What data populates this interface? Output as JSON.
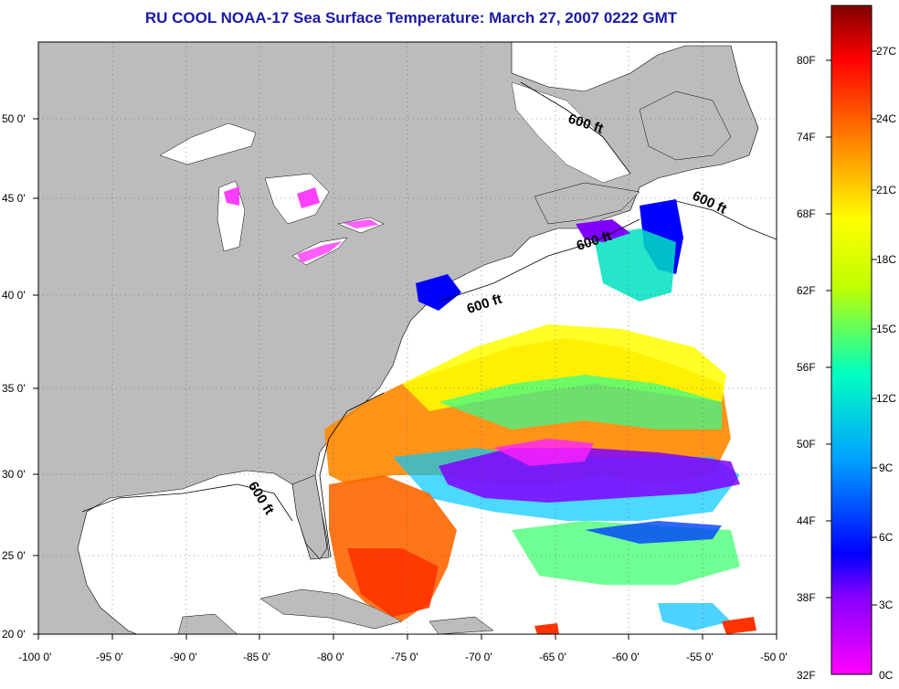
{
  "title": "RU COOL  NOAA-17  Sea Surface Temperature:  March 27, 2007 0222 GMT",
  "map": {
    "lon_ticks": [
      "-100 0'",
      "-95 0'",
      "-90 0'",
      "-85 0'",
      "-80 0'",
      "-75 0'",
      "-70 0'",
      "-65 0'",
      "-60 0'",
      "-55 0'",
      "-50 0'"
    ],
    "lat_ticks": [
      "50 0'",
      "45 0'",
      "40 0'",
      "35 0'",
      "30 0'",
      "25 0'",
      "20 0'"
    ],
    "isobath_labels": [
      "600 ft",
      "600 ft",
      "600 ft",
      "600 ft",
      "600 ft"
    ],
    "land_color": "#bcbcbc",
    "ocean_nodata_color": "#ffffff"
  },
  "colorbar": {
    "fahrenheit_labels": [
      "80F",
      "74F",
      "68F",
      "62F",
      "56F",
      "50F",
      "44F",
      "38F",
      "32F"
    ],
    "celsius_labels": [
      "27C",
      "24C",
      "21C",
      "18C",
      "15C",
      "12C",
      "9C",
      "6C",
      "3C",
      "0C"
    ]
  }
}
